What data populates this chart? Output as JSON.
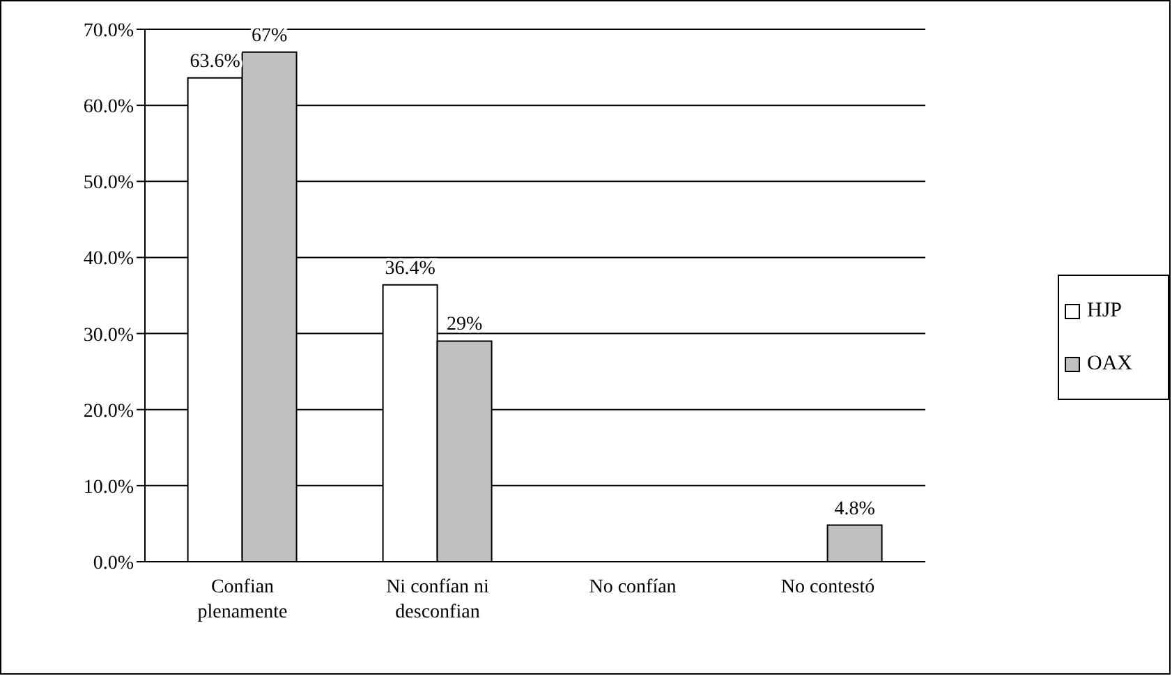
{
  "chart_data": {
    "type": "bar",
    "categories": [
      "Confian plenamente",
      "Ni confían ni desconfian",
      "No confían",
      "No contestó"
    ],
    "series": [
      {
        "name": "HJP",
        "color": "#ffffff",
        "values": [
          63.6,
          36.4,
          0,
          0
        ],
        "value_labels": [
          "63.6%",
          "36.4%",
          null,
          null
        ]
      },
      {
        "name": "OAX",
        "color": "#c0c0c0",
        "values": [
          67,
          29,
          0,
          4.8
        ],
        "value_labels": [
          "67%",
          "29%",
          null,
          "4.8%"
        ]
      }
    ],
    "ylim": [
      0,
      70
    ],
    "yticks": [
      {
        "value": 0,
        "label": "0.0%"
      },
      {
        "value": 10,
        "label": "10.0%"
      },
      {
        "value": 20,
        "label": "20.0%"
      },
      {
        "value": 30,
        "label": "30.0%"
      },
      {
        "value": 40,
        "label": "40.0%"
      },
      {
        "value": 50,
        "label": "50.0%"
      },
      {
        "value": 60,
        "label": "60.0%"
      },
      {
        "value": 70,
        "label": "70.0%"
      }
    ],
    "grid": "y",
    "legend": "right"
  }
}
